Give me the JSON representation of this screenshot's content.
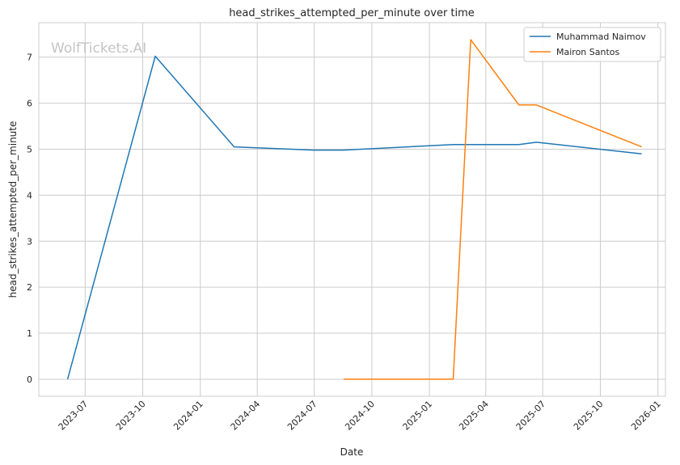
{
  "chart_data": {
    "type": "line",
    "title": "head_strikes_attempted_per_minute over time",
    "xlabel": "Date",
    "ylabel": "head_strikes_attempted_per_minute",
    "watermark": "WolfTickets.AI",
    "xlim": [
      "2023-04-18",
      "2026-01-13"
    ],
    "ylim": [
      -0.37,
      7.75
    ],
    "x_ticks": [
      "2023-07-01",
      "2023-10-01",
      "2024-01-01",
      "2024-04-01",
      "2024-07-01",
      "2024-10-01",
      "2025-01-01",
      "2025-04-01",
      "2025-07-01",
      "2025-10-01",
      "2026-01-01"
    ],
    "x_tick_labels": [
      "2023-07",
      "2023-10",
      "2024-01",
      "2024-04",
      "2024-07",
      "2024-10",
      "2025-01",
      "2025-04",
      "2025-07",
      "2025-10",
      "2026-01"
    ],
    "y_ticks": [
      0,
      1,
      2,
      3,
      4,
      5,
      6,
      7
    ],
    "grid": true,
    "legend": "top-right",
    "series": [
      {
        "name": "Muhammad Naimov",
        "color": "#1f77b4",
        "points": [
          {
            "x": "2023-06-03",
            "y": 0.0
          },
          {
            "x": "2023-10-21",
            "y": 7.02
          },
          {
            "x": "2024-02-24",
            "y": 5.05
          },
          {
            "x": "2024-06-29",
            "y": 4.98
          },
          {
            "x": "2024-08-17",
            "y": 4.98
          },
          {
            "x": "2025-02-08",
            "y": 5.1
          },
          {
            "x": "2025-05-24",
            "y": 5.1
          },
          {
            "x": "2025-06-21",
            "y": 5.15
          },
          {
            "x": "2025-12-06",
            "y": 4.9
          }
        ]
      },
      {
        "name": "Mairon Santos",
        "color": "#ff7f0e",
        "points": [
          {
            "x": "2024-08-17",
            "y": 0.0
          },
          {
            "x": "2025-02-08",
            "y": 0.0
          },
          {
            "x": "2025-03-08",
            "y": 7.38
          },
          {
            "x": "2025-05-24",
            "y": 5.96
          },
          {
            "x": "2025-06-21",
            "y": 5.96
          },
          {
            "x": "2025-12-06",
            "y": 5.05
          }
        ]
      }
    ]
  }
}
